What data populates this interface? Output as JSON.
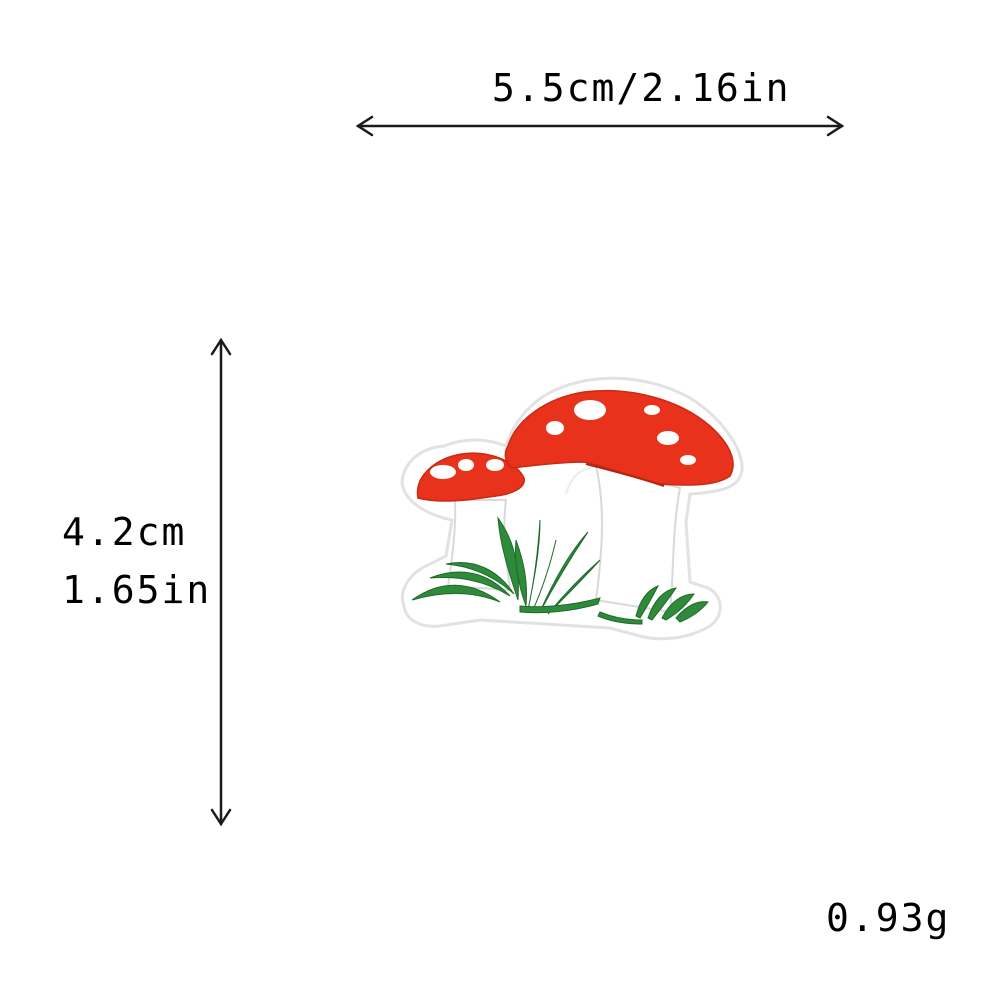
{
  "dimensions": {
    "width_label": "5.5cm/2.16in",
    "height_label_cm": "4.2cm",
    "height_label_in": "1.65in",
    "weight_label": "0.93g"
  },
  "product": {
    "image_icon": "mushroom-patch-icon",
    "colors": {
      "cap": "#e8321c",
      "stem": "#ffffff",
      "grass": "#2e8b3a",
      "outline": "#e6e6e6",
      "arrow": "#1a1a1a"
    }
  }
}
